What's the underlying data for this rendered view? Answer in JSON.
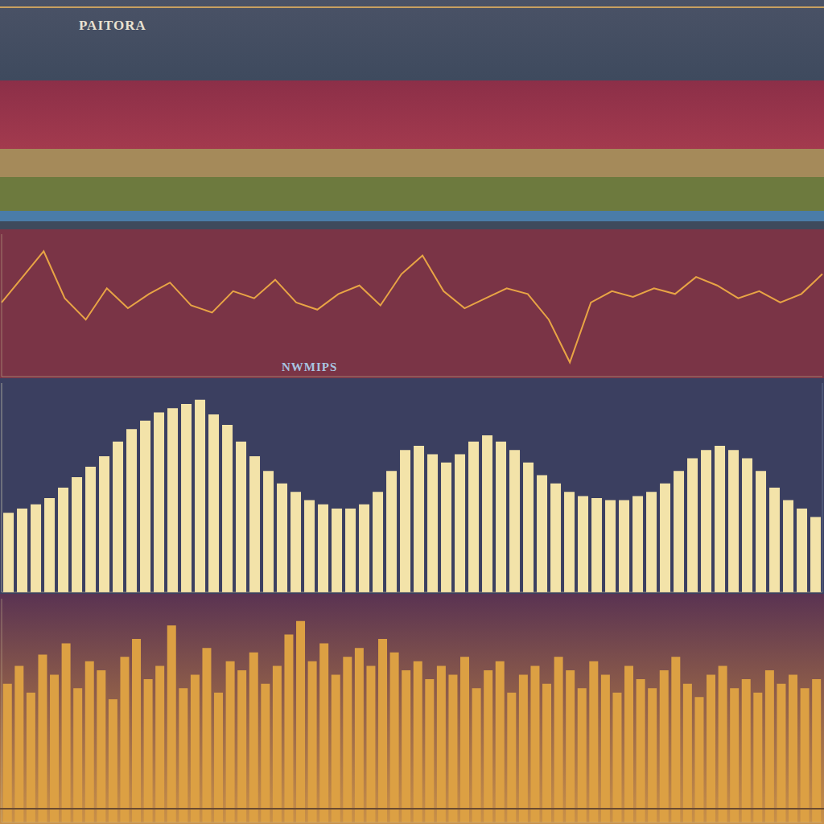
{
  "chart_data": [
    {
      "type": "line",
      "title": "PAITORA",
      "categories": [
        null,
        null,
        null,
        null,
        null,
        null,
        null,
        null,
        null,
        null,
        null,
        null,
        null,
        null,
        null,
        null,
        null,
        null,
        null,
        null,
        null,
        null,
        null,
        null,
        null,
        null,
        null,
        null,
        null,
        null,
        null,
        null,
        null,
        null,
        null,
        null,
        null,
        null,
        null,
        null
      ],
      "values": [
        52,
        70,
        88,
        55,
        40,
        62,
        48,
        58,
        66,
        50,
        45,
        60,
        55,
        68,
        52,
        47,
        58,
        64,
        50,
        72,
        85,
        60,
        48,
        55,
        62,
        58,
        40,
        10,
        52,
        60,
        56,
        62,
        58,
        70,
        64,
        55,
        60,
        52,
        58,
        72
      ],
      "color": "#e8a445",
      "ylim": [
        0,
        100
      ],
      "grid": false,
      "tick_labels": false
    },
    {
      "type": "bar",
      "title": "NWMIPS",
      "categories": [
        null,
        null,
        null,
        null,
        null,
        null,
        null,
        null,
        null,
        null,
        null,
        null,
        null,
        null,
        null,
        null,
        null,
        null,
        null,
        null,
        null,
        null,
        null,
        null,
        null,
        null,
        null,
        null,
        null,
        null,
        null,
        null,
        null,
        null,
        null,
        null,
        null,
        null,
        null,
        null,
        null,
        null,
        null,
        null,
        null,
        null,
        null,
        null,
        null,
        null,
        null,
        null,
        null,
        null,
        null,
        null,
        null,
        null,
        null,
        null
      ],
      "values": [
        38,
        40,
        42,
        45,
        50,
        55,
        60,
        65,
        72,
        78,
        82,
        86,
        88,
        90,
        92,
        85,
        80,
        72,
        65,
        58,
        52,
        48,
        44,
        42,
        40,
        40,
        42,
        48,
        58,
        68,
        70,
        66,
        62,
        66,
        72,
        75,
        72,
        68,
        62,
        56,
        52,
        48,
        46,
        45,
        44,
        44,
        46,
        48,
        52,
        58,
        64,
        68,
        70,
        68,
        64,
        58,
        50,
        44,
        40,
        36
      ],
      "color": "#f3e3a9",
      "ylim": [
        0,
        100
      ],
      "grid": true,
      "tick_labels": false
    },
    {
      "type": "bar",
      "categories": [
        null,
        null,
        null,
        null,
        null,
        null,
        null,
        null,
        null,
        null,
        null,
        null,
        null,
        null,
        null,
        null,
        null,
        null,
        null,
        null,
        null,
        null,
        null,
        null,
        null,
        null,
        null,
        null,
        null,
        null,
        null,
        null,
        null,
        null,
        null,
        null,
        null,
        null,
        null,
        null,
        null,
        null,
        null,
        null,
        null,
        null,
        null,
        null,
        null,
        null,
        null,
        null,
        null,
        null,
        null,
        null,
        null,
        null,
        null,
        null,
        null,
        null,
        null,
        null,
        null,
        null,
        null,
        null,
        null,
        null
      ],
      "values": [
        62,
        70,
        58,
        75,
        66,
        80,
        60,
        72,
        68,
        55,
        74,
        82,
        64,
        70,
        88,
        60,
        66,
        78,
        58,
        72,
        68,
        76,
        62,
        70,
        84,
        90,
        72,
        80,
        66,
        74,
        78,
        70,
        82,
        76,
        68,
        72,
        64,
        70,
        66,
        74,
        60,
        68,
        72,
        58,
        66,
        70,
        62,
        74,
        68,
        60,
        72,
        66,
        58,
        70,
        64,
        60,
        68,
        74,
        62,
        56,
        66,
        70,
        60,
        64,
        58,
        68,
        62,
        66,
        60,
        64
      ],
      "color": "#dca043",
      "ylim": [
        0,
        100
      ],
      "grid": false,
      "tick_labels": false
    }
  ]
}
